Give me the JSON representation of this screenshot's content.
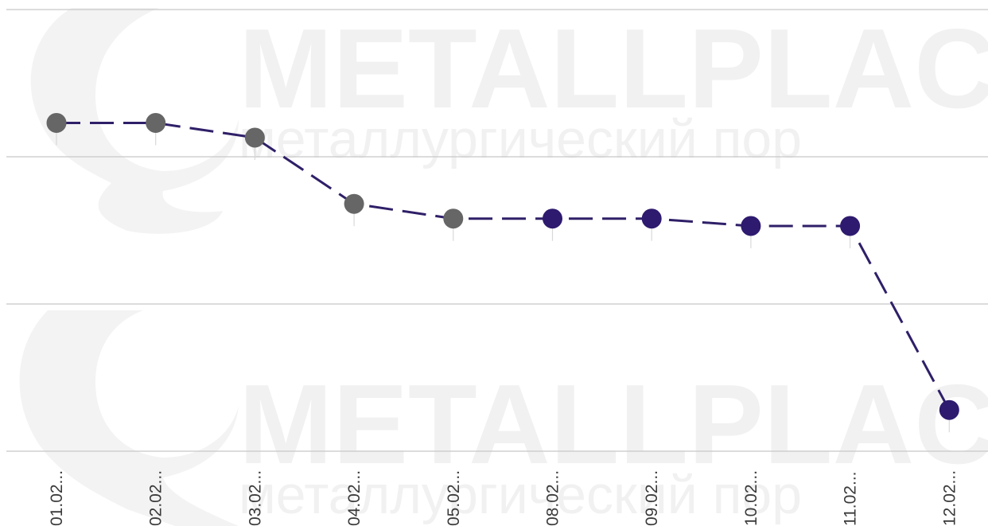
{
  "watermark": {
    "brand": "METALLPLACE.I",
    "subtitle": "металлургический пор"
  },
  "colors": {
    "past": "#666666",
    "current": "#2e1a6e",
    "line": "#2f1f68",
    "grid": "#c8c8c8"
  },
  "chart_data": {
    "type": "line",
    "title": "",
    "xlabel": "",
    "ylabel": "",
    "grid": true,
    "categories": [
      "01.02...",
      "02.02...",
      "03.02...",
      "04.02...",
      "05.02...",
      "08.02...",
      "09.02...",
      "10.02...",
      "11.02...",
      "12.02..."
    ],
    "series": [
      {
        "values": [
          72.3,
          72.3,
          71.3,
          66.8,
          65.8,
          65.8,
          65.8,
          65.3,
          65.3,
          52.8
        ],
        "point_status": [
          "past",
          "past",
          "past",
          "past",
          "past",
          "current",
          "current",
          "current",
          "current",
          "current"
        ]
      }
    ],
    "ylim": [
      50,
      80
    ],
    "gridlines": [
      50,
      60,
      70,
      80
    ]
  }
}
